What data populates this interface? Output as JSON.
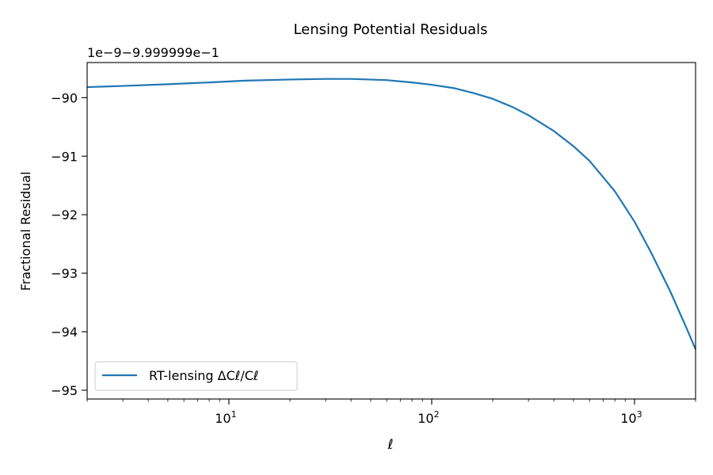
{
  "chart_data": {
    "type": "line",
    "title": "Lensing Potential Residuals",
    "xlabel": "ℓ",
    "ylabel": "Fractional Residual",
    "offset_text": "1e−9−9.999999e−1",
    "x_scale": "log",
    "xlim": [
      2,
      2000
    ],
    "ylim": [
      -95.15,
      -89.4
    ],
    "grid": false,
    "legend_position": "lower-left",
    "series_color": "#1f77b4",
    "x_ticks": [
      {
        "value": 10,
        "base": "10",
        "exp": "1"
      },
      {
        "value": 100,
        "base": "10",
        "exp": "2"
      },
      {
        "value": 1000,
        "base": "10",
        "exp": "3"
      }
    ],
    "y_ticks": [
      {
        "value": -90,
        "label": "−90"
      },
      {
        "value": -91,
        "label": "−91"
      },
      {
        "value": -92,
        "label": "−92"
      },
      {
        "value": -93,
        "label": "−93"
      },
      {
        "value": -94,
        "label": "−94"
      },
      {
        "value": -95,
        "label": "−95"
      }
    ],
    "series": [
      {
        "name": "RT-lensing ΔCℓ/Cℓ",
        "x": [
          2,
          3,
          5,
          8,
          12,
          20,
          30,
          40,
          60,
          80,
          100,
          130,
          160,
          200,
          250,
          300,
          400,
          500,
          600,
          800,
          1000,
          1200,
          1500,
          1800,
          2000
        ],
        "y": [
          -89.82,
          -89.8,
          -89.77,
          -89.74,
          -89.71,
          -89.69,
          -89.68,
          -89.68,
          -89.7,
          -89.74,
          -89.78,
          -89.84,
          -89.92,
          -90.02,
          -90.16,
          -90.3,
          -90.57,
          -90.83,
          -91.08,
          -91.6,
          -92.12,
          -92.63,
          -93.31,
          -93.93,
          -94.3
        ]
      }
    ]
  }
}
